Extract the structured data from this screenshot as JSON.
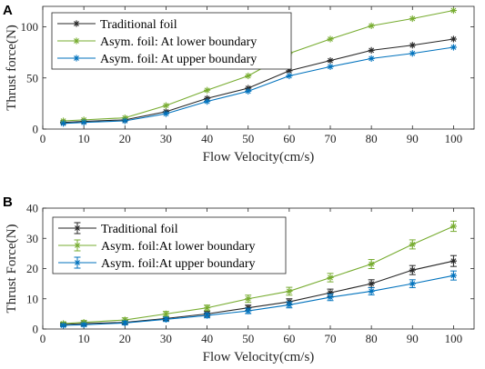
{
  "chart_data": [
    {
      "type": "line",
      "panel_label": "A",
      "xlabel": "Flow Velocity(cm/s)",
      "ylabel": "Thrust force(N)",
      "x": [
        5,
        10,
        20,
        30,
        40,
        50,
        60,
        70,
        80,
        90,
        100
      ],
      "x_ticks": [
        0,
        10,
        20,
        30,
        40,
        50,
        60,
        70,
        80,
        90,
        100
      ],
      "y_ticks": [
        0,
        50,
        100
      ],
      "xlim": [
        0,
        105
      ],
      "ylim": [
        0,
        120
      ],
      "grid": false,
      "legend_position": "top-left",
      "error_bars": false,
      "series": [
        {
          "name": "Traditional foil",
          "color": "#262626",
          "marker": "asterisk",
          "values": [
            6.5,
            7.5,
            9,
            17,
            30,
            40,
            57,
            67,
            77,
            82,
            88
          ]
        },
        {
          "name": "Asym. foil: At lower boundary",
          "color": "#77ac30",
          "marker": "asterisk",
          "values": [
            8,
            9,
            11,
            23,
            38,
            52,
            74,
            88,
            101,
            108,
            116
          ]
        },
        {
          "name": "Asym. foil: At upper boundary",
          "color": "#0072bd",
          "marker": "asterisk",
          "values": [
            5.5,
            6.5,
            8,
            15,
            27,
            37,
            52,
            61,
            69,
            74,
            80
          ]
        }
      ]
    },
    {
      "type": "line",
      "panel_label": "B",
      "xlabel": "Flow Velocity(cm/s)",
      "ylabel": "Thrust Force(N)",
      "x": [
        5,
        10,
        20,
        30,
        40,
        50,
        60,
        70,
        80,
        90,
        100
      ],
      "x_ticks": [
        0,
        10,
        20,
        30,
        40,
        50,
        60,
        70,
        80,
        90,
        100
      ],
      "y_ticks": [
        0,
        10,
        20,
        30,
        40
      ],
      "xlim": [
        0,
        105
      ],
      "ylim": [
        0,
        40
      ],
      "grid": false,
      "legend_position": "top-left",
      "error_bars": true,
      "series": [
        {
          "name": "Traditional foil",
          "color": "#262626",
          "marker": "asterisk",
          "values": [
            1.5,
            1.8,
            2.2,
            3.5,
            5.0,
            7.0,
            9.0,
            12.0,
            15.0,
            19.5,
            22.5
          ],
          "errors": [
            0.5,
            0.5,
            0.6,
            0.7,
            0.8,
            0.9,
            1.0,
            1.2,
            1.3,
            1.5,
            1.8
          ]
        },
        {
          "name": "Asym. foil:At lower boundary",
          "color": "#77ac30",
          "marker": "asterisk",
          "values": [
            1.8,
            2.2,
            3.0,
            5.0,
            7.0,
            10.0,
            12.5,
            17.0,
            21.5,
            28.0,
            34.0
          ],
          "errors": [
            0.5,
            0.6,
            0.7,
            0.8,
            0.9,
            1.2,
            1.3,
            1.4,
            1.5,
            1.5,
            1.7
          ]
        },
        {
          "name": "Asym. foil:At upper boundary",
          "color": "#0072bd",
          "marker": "asterisk",
          "values": [
            1.2,
            1.4,
            2.0,
            3.2,
            4.5,
            6.0,
            8.0,
            10.5,
            12.5,
            15.0,
            17.7
          ],
          "errors": [
            0.4,
            0.5,
            0.6,
            0.7,
            0.8,
            0.9,
            1.0,
            1.1,
            1.2,
            1.3,
            1.5
          ]
        }
      ]
    }
  ]
}
